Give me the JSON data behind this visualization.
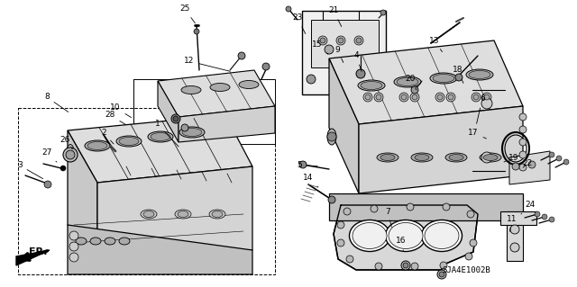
{
  "background_color": "#ffffff",
  "line_color": "#000000",
  "part_code": "SJA4E1002B",
  "arrow_label": "FR.",
  "figsize": [
    6.4,
    3.19
  ],
  "dpi": 100,
  "labels": [
    [
      "1",
      172,
      138
    ],
    [
      "2",
      118,
      148
    ],
    [
      "3",
      28,
      184
    ],
    [
      "4",
      392,
      58
    ],
    [
      "5",
      330,
      183
    ],
    [
      "6",
      536,
      110
    ],
    [
      "7",
      434,
      236
    ],
    [
      "8",
      55,
      110
    ],
    [
      "9",
      374,
      58
    ],
    [
      "10",
      132,
      120
    ],
    [
      "11",
      568,
      243
    ],
    [
      "12",
      212,
      72
    ],
    [
      "13",
      484,
      48
    ],
    [
      "14",
      352,
      198
    ],
    [
      "15",
      354,
      50
    ],
    [
      "16",
      450,
      270
    ],
    [
      "17",
      530,
      148
    ],
    [
      "18",
      508,
      82
    ],
    [
      "19",
      572,
      175
    ],
    [
      "20",
      458,
      90
    ],
    [
      "21",
      370,
      14
    ],
    [
      "22",
      588,
      185
    ],
    [
      "23",
      336,
      22
    ],
    [
      "24",
      590,
      230
    ],
    [
      "25",
      208,
      12
    ],
    [
      "26",
      75,
      158
    ],
    [
      "27",
      55,
      172
    ],
    [
      "28",
      126,
      130
    ]
  ],
  "leader_lines": [
    [
      "1",
      172,
      138,
      190,
      168
    ],
    [
      "2",
      118,
      148,
      138,
      160
    ],
    [
      "3",
      28,
      184,
      55,
      195
    ],
    [
      "4",
      392,
      58,
      400,
      82
    ],
    [
      "5",
      330,
      183,
      352,
      185
    ],
    [
      "6",
      536,
      110,
      530,
      140
    ],
    [
      "7",
      434,
      236,
      440,
      255
    ],
    [
      "8",
      55,
      110,
      80,
      128
    ],
    [
      "9",
      374,
      58,
      384,
      72
    ],
    [
      "10",
      132,
      120,
      152,
      132
    ],
    [
      "11",
      568,
      243,
      565,
      258
    ],
    [
      "12",
      212,
      72,
      228,
      88
    ],
    [
      "13",
      484,
      48,
      478,
      72
    ],
    [
      "14",
      352,
      198,
      368,
      210
    ],
    [
      "15",
      354,
      50,
      370,
      68
    ],
    [
      "16",
      450,
      270,
      448,
      282
    ],
    [
      "17",
      530,
      148,
      522,
      155
    ],
    [
      "18",
      508,
      82,
      510,
      100
    ],
    [
      "19",
      572,
      175,
      558,
      185
    ],
    [
      "20",
      458,
      90,
      462,
      105
    ],
    [
      "21",
      370,
      14,
      382,
      35
    ],
    [
      "22",
      588,
      185,
      575,
      190
    ],
    [
      "23",
      336,
      22,
      348,
      45
    ],
    [
      "24",
      590,
      230,
      578,
      238
    ],
    [
      "25",
      208,
      12,
      220,
      35
    ],
    [
      "26",
      75,
      158,
      88,
      165
    ],
    [
      "27",
      55,
      172,
      70,
      180
    ],
    [
      "28",
      126,
      130,
      148,
      142
    ]
  ]
}
